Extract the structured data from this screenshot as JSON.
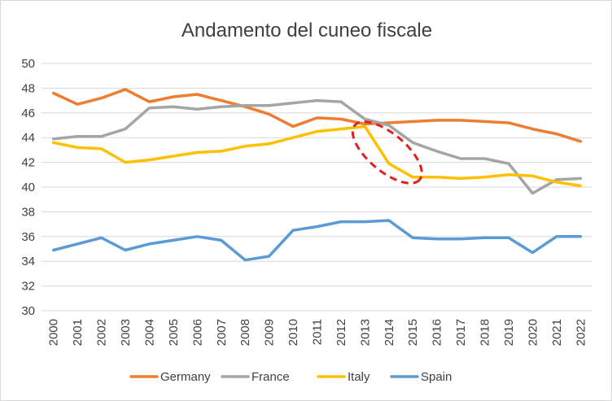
{
  "chart_data": {
    "type": "line",
    "title": "Andamento del cuneo fiscale",
    "xlabel": "",
    "ylabel": "",
    "ylim": [
      30,
      50
    ],
    "y_ticks": [
      "30",
      "32",
      "34",
      "36",
      "38",
      "40",
      "42",
      "44",
      "46",
      "48",
      "50"
    ],
    "grid": "horizontal",
    "legend_position": "bottom",
    "x": [
      "2000",
      "2001",
      "2002",
      "2003",
      "2004",
      "2005",
      "2006",
      "2007",
      "2008",
      "2009",
      "2010",
      "2011",
      "2012",
      "2013",
      "2014",
      "2015",
      "2016",
      "2017",
      "2018",
      "2019",
      "2020",
      "2021",
      "2022"
    ],
    "series": [
      {
        "name": "Germany",
        "color": "#ED7D31",
        "values": [
          47.6,
          46.7,
          47.2,
          47.9,
          46.9,
          47.3,
          47.5,
          47.0,
          46.5,
          45.9,
          44.9,
          45.6,
          45.5,
          45.1,
          45.2,
          45.3,
          45.4,
          45.4,
          45.3,
          45.2,
          44.7,
          44.3,
          43.7
        ]
      },
      {
        "name": "France",
        "color": "#A5A5A5",
        "values": [
          43.9,
          44.1,
          44.1,
          44.7,
          46.4,
          46.5,
          46.3,
          46.5,
          46.6,
          46.6,
          46.8,
          47.0,
          46.9,
          45.5,
          45.0,
          43.6,
          42.9,
          42.3,
          42.3,
          41.9,
          39.5,
          40.6,
          40.7
        ]
      },
      {
        "name": "Italy",
        "color": "#FFC000",
        "values": [
          43.6,
          43.2,
          43.1,
          42.0,
          42.2,
          42.5,
          42.8,
          42.9,
          43.3,
          43.5,
          44.0,
          44.5,
          44.7,
          44.9,
          41.9,
          40.8,
          40.8,
          40.7,
          40.8,
          41.0,
          40.9,
          40.4,
          40.1
        ]
      },
      {
        "name": "Spain",
        "color": "#5B9BD5",
        "values": [
          34.9,
          35.4,
          35.9,
          34.9,
          35.4,
          35.7,
          36.0,
          35.7,
          34.1,
          34.4,
          36.5,
          36.8,
          37.2,
          37.2,
          37.3,
          35.9,
          35.8,
          35.8,
          35.9,
          35.9,
          34.7,
          36.0,
          36.0
        ]
      }
    ],
    "annotation": {
      "shape": "dashed-ellipse",
      "color": "#E02020",
      "around_years": [
        "2013",
        "2015"
      ]
    }
  }
}
